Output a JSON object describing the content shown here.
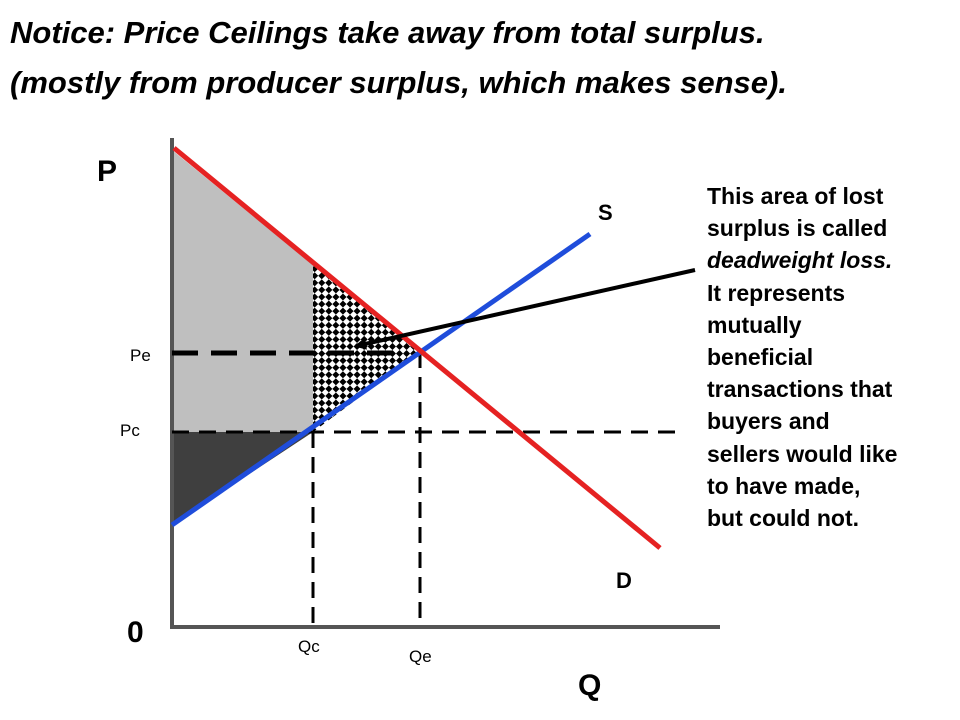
{
  "title": {
    "line1": "Notice: Price Ceilings take away from total surplus.",
    "line2": "(mostly from producer surplus, which makes sense)."
  },
  "axes": {
    "y_label": "P",
    "x_label": "Q",
    "origin_label": "0"
  },
  "curves": {
    "supply_label": "S",
    "demand_label": "D",
    "supply_color": "#1f4ddb",
    "demand_color": "#e52222"
  },
  "price_labels": {
    "equilibrium": "Pe",
    "ceiling": "Pc"
  },
  "quantity_labels": {
    "ceiling": "Qc",
    "equilibrium": "Qe"
  },
  "regions": {
    "consumer_surplus_color": "#bfbfbf",
    "producer_surplus_color": "#3f3f3f",
    "deadweight_pattern": "checkerboard"
  },
  "annotation": {
    "line1": "This area of lost",
    "line2": "surplus is called",
    "line3_italic": "deadweight loss.",
    "line4": "It represents",
    "line5": "mutually",
    "line6": "beneficial",
    "line7": "transactions that",
    "line8": "buyers and",
    "line9": "sellers would like",
    "line10": "to have made,",
    "line11": "but could not."
  }
}
